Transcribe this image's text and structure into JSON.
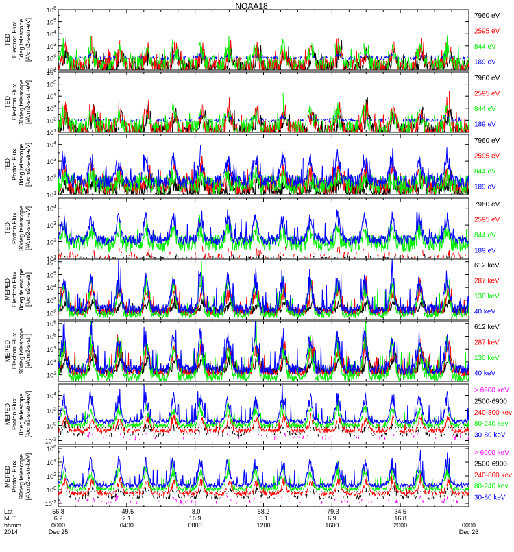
{
  "figure": {
    "title": "NOAA18",
    "date_start": "Dec 25",
    "date_end": "Dec 26",
    "year": "2014"
  },
  "colors": {
    "black": "#000000",
    "red": "#ff0000",
    "green": "#00ee00",
    "blue": "#0000ff",
    "magenta": "#ff00ff"
  },
  "ephemeris": {
    "row_labels": [
      "Lat",
      "MLT",
      "hhmm",
      "2014"
    ],
    "columns": [
      {
        "lat": "56.8",
        "mlt": "6.2",
        "hhmm": "0000",
        "date": "Dec 25"
      },
      {
        "lat": "-49.5",
        "mlt": "2.1",
        "hhmm": "0400",
        "date": ""
      },
      {
        "lat": "-8.0",
        "mlt": "16.9",
        "hhmm": "0800",
        "date": ""
      },
      {
        "lat": "58.2",
        "mlt": "5.1",
        "hhmm": "1200",
        "date": ""
      },
      {
        "lat": "-79.3",
        "mlt": "6.9",
        "hhmm": "1600",
        "date": ""
      },
      {
        "lat": "34.5",
        "mlt": "16.8",
        "hhmm": "2000",
        "date": ""
      },
      {
        "lat": "",
        "mlt": "",
        "hhmm": "0000",
        "date": "Dec 26"
      }
    ]
  },
  "chart_data": [
    {
      "type": "line",
      "ylabel": [
        "TED",
        "Electron Flux",
        "0deg telescope",
        "[#/cm2-s-str-eV]"
      ],
      "y_scale": "log",
      "y_ticks": [
        "10^1",
        "10^2",
        "10^3",
        "10^4",
        "10^5",
        "10^6"
      ],
      "ylim": [
        1,
        6
      ],
      "x_hours": [
        0,
        24
      ],
      "series": [
        {
          "name": "7960 eV",
          "color": "black",
          "base": 1.2,
          "peak": 2.6,
          "noise": 0.6,
          "period": 1.6,
          "offset": 0.2,
          "gaps": 0.1,
          "spiky": 1.0
        },
        {
          "name": "2595 eV",
          "color": "red",
          "base": 1.3,
          "peak": 3.0,
          "noise": 0.7,
          "period": 1.6,
          "offset": 0.25,
          "gaps": 0.1,
          "spiky": 1.0
        },
        {
          "name": "844 eV",
          "color": "green",
          "base": 1.5,
          "peak": 3.2,
          "noise": 0.7,
          "period": 1.6,
          "offset": 0.3,
          "gaps": 0.2,
          "spiky": 1.0
        },
        {
          "name": "189 eV",
          "color": "blue",
          "base": 2.0,
          "peak": 2.3,
          "noise": 0.15,
          "period": 1.6,
          "offset": 0.3,
          "gaps": 0.4,
          "spiky": 0.3
        }
      ]
    },
    {
      "type": "line",
      "ylabel": [
        "TED",
        "Electron Flux",
        "30deg telescope",
        "[#/cm2-s-str-eV]"
      ],
      "y_scale": "log",
      "y_ticks": [
        "10^1",
        "10^2",
        "10^3",
        "10^4",
        "10^5",
        "10^6"
      ],
      "ylim": [
        1,
        6
      ],
      "x_hours": [
        0,
        24
      ],
      "series": [
        {
          "name": "7960 eV",
          "color": "black",
          "base": 1.1,
          "peak": 2.8,
          "noise": 0.6,
          "period": 1.6,
          "offset": 0.2,
          "gaps": 0.1,
          "spiky": 1.0
        },
        {
          "name": "2595 eV",
          "color": "red",
          "base": 1.2,
          "peak": 3.3,
          "noise": 0.7,
          "period": 1.6,
          "offset": 0.25,
          "gaps": 0.1,
          "spiky": 1.0
        },
        {
          "name": "844 eV",
          "color": "green",
          "base": 1.4,
          "peak": 3.0,
          "noise": 0.7,
          "period": 1.6,
          "offset": 0.3,
          "gaps": 0.2,
          "spiky": 1.0
        },
        {
          "name": "189 eV",
          "color": "blue",
          "base": 2.0,
          "peak": 2.4,
          "noise": 0.15,
          "period": 1.6,
          "offset": 0.3,
          "gaps": 0.45,
          "spiky": 0.3
        }
      ]
    },
    {
      "type": "line",
      "ylabel": [
        "TED",
        "Proton Flux",
        "0deg telescope",
        "[#/cm2-s-str-eV]"
      ],
      "y_scale": "log",
      "y_ticks": [
        "10^1",
        "10^2",
        "10^3",
        "10^4"
      ],
      "ylim": [
        1,
        4.6
      ],
      "x_hours": [
        0,
        24
      ],
      "series": [
        {
          "name": "7960 eV",
          "color": "black",
          "base": 1.2,
          "peak": 2.0,
          "noise": 0.5,
          "period": 1.6,
          "offset": 0.2,
          "gaps": 0.05,
          "spiky": 0.8
        },
        {
          "name": "2595 eV",
          "color": "red",
          "base": 1.5,
          "peak": 2.8,
          "noise": 0.5,
          "period": 1.6,
          "offset": 0.25,
          "gaps": 0.05,
          "spiky": 0.8
        },
        {
          "name": "844 eV",
          "color": "green",
          "base": 1.6,
          "peak": 2.2,
          "noise": 0.6,
          "period": 1.6,
          "offset": 0.3,
          "gaps": 0.05,
          "spiky": 0.6
        },
        {
          "name": "189 eV",
          "color": "blue",
          "base": 1.8,
          "peak": 3.6,
          "noise": 0.4,
          "period": 1.6,
          "offset": 0.3,
          "gaps": 0.05,
          "spiky": 0.9
        }
      ]
    },
    {
      "type": "line",
      "ylabel": [
        "TED",
        "Proton Flux",
        "30deg telescope",
        "[#/cm2-s-str-eV]"
      ],
      "y_scale": "log",
      "y_ticks": [
        "10^1",
        "10^2",
        "10^3",
        "10^4"
      ],
      "ylim": [
        1,
        4.6
      ],
      "x_hours": [
        0,
        24
      ],
      "series": [
        {
          "name": "7960 eV",
          "color": "black",
          "base": 0.9,
          "peak": 1.2,
          "noise": 0.2,
          "period": 1.6,
          "offset": 0.2,
          "gaps": 0.6,
          "spiky": 0.3
        },
        {
          "name": "2595 eV",
          "color": "red",
          "base": 1.1,
          "peak": 1.5,
          "noise": 0.3,
          "period": 1.6,
          "offset": 0.25,
          "gaps": 0.6,
          "spiky": 0.3
        },
        {
          "name": "844 eV",
          "color": "green",
          "base": 1.9,
          "peak": 3.0,
          "noise": 0.5,
          "period": 1.6,
          "offset": 0.3,
          "gaps": 0.0,
          "spiky": 0.5
        },
        {
          "name": "189 eV",
          "color": "blue",
          "base": 2.1,
          "peak": 3.8,
          "noise": 0.3,
          "period": 1.6,
          "offset": 0.3,
          "gaps": 0.0,
          "spiky": 0.8
        }
      ]
    },
    {
      "type": "line",
      "ylabel": [
        "MEPED",
        "Electron Flux",
        "0deg telescope",
        "[#/cm2-s-str]"
      ],
      "y_scale": "log",
      "y_ticks": [
        "10^2",
        "10^3",
        "10^4",
        "10^5",
        "10^6"
      ],
      "ylim": [
        1.5,
        6.2
      ],
      "x_hours": [
        0,
        24
      ],
      "series": [
        {
          "name": "612 keV",
          "color": "black",
          "base": 2.2,
          "peak": 3.0,
          "noise": 0.3,
          "period": 1.6,
          "offset": 0.2,
          "gaps": 0.0,
          "spiky": 0.6
        },
        {
          "name": "287 keV",
          "color": "red",
          "base": 2.1,
          "peak": 4.4,
          "noise": 0.3,
          "period": 1.6,
          "offset": 0.25,
          "gaps": 0.0,
          "spiky": 0.8
        },
        {
          "name": "130 keV",
          "color": "green",
          "base": 1.9,
          "peak": 4.8,
          "noise": 0.3,
          "period": 1.6,
          "offset": 0.3,
          "gaps": 0.0,
          "spiky": 0.8
        },
        {
          "name": "40 keV",
          "color": "blue",
          "base": 2.3,
          "peak": 5.3,
          "noise": 0.4,
          "period": 1.6,
          "offset": 0.3,
          "gaps": 0.0,
          "spiky": 1.0
        }
      ]
    },
    {
      "type": "line",
      "ylabel": [
        "MEPED",
        "Electron Flux",
        "90deg telescope",
        "[#/cm2-s-str]"
      ],
      "y_scale": "log",
      "y_ticks": [
        "10^2",
        "10^3",
        "10^4",
        "10^5",
        "10^6"
      ],
      "ylim": [
        1.5,
        6.2
      ],
      "x_hours": [
        0,
        24
      ],
      "series": [
        {
          "name": "612 keV",
          "color": "black",
          "base": 2.3,
          "peak": 3.8,
          "noise": 0.3,
          "period": 1.6,
          "offset": 0.2,
          "gaps": 0.0,
          "spiky": 0.8
        },
        {
          "name": "287 keV",
          "color": "red",
          "base": 2.2,
          "peak": 4.8,
          "noise": 0.3,
          "period": 1.6,
          "offset": 0.25,
          "gaps": 0.0,
          "spiky": 0.9
        },
        {
          "name": "130 keV",
          "color": "green",
          "base": 1.8,
          "peak": 5.1,
          "noise": 0.3,
          "period": 1.6,
          "offset": 0.3,
          "gaps": 0.0,
          "spiky": 0.9
        },
        {
          "name": "40 keV",
          "color": "blue",
          "base": 2.4,
          "peak": 5.6,
          "noise": 0.4,
          "period": 1.6,
          "offset": 0.3,
          "gaps": 0.0,
          "spiky": 1.0
        }
      ]
    },
    {
      "type": "line",
      "ylabel": [
        "MEPED",
        "Proton Flux",
        "0deg telescope",
        "[#/cm2-s-str-keV]"
      ],
      "y_scale": "log",
      "y_ticks": [
        "10^-2",
        "10^0",
        "10^2",
        "10^4"
      ],
      "ylim": [
        -2.5,
        5.5
      ],
      "x_hours": [
        0,
        24
      ],
      "series": [
        {
          "name": "> 6900 keV",
          "color": "magenta",
          "base": -1.6,
          "peak": -0.8,
          "noise": 0.3,
          "period": 1.6,
          "offset": 0.3,
          "gaps": 0.7,
          "spiky": 0.4
        },
        {
          "name": "2500-6900",
          "color": "black",
          "base": -1.2,
          "peak": 0.3,
          "noise": 0.3,
          "period": 1.6,
          "offset": 0.25,
          "gaps": 0.5,
          "spiky": 0.5
        },
        {
          "name": "240-800 kev",
          "color": "red",
          "base": -0.7,
          "peak": 1.4,
          "noise": 0.3,
          "period": 1.6,
          "offset": 0.25,
          "gaps": 0.1,
          "spiky": 0.6
        },
        {
          "name": "80-240 kev",
          "color": "green",
          "base": 0.0,
          "peak": 2.8,
          "noise": 0.3,
          "period": 1.6,
          "offset": 0.3,
          "gaps": 0.05,
          "spiky": 0.9
        },
        {
          "name": "30-80 keV",
          "color": "blue",
          "base": 0.5,
          "peak": 4.4,
          "noise": 0.3,
          "period": 1.6,
          "offset": 0.3,
          "gaps": 0.0,
          "spiky": 1.0
        }
      ]
    },
    {
      "type": "line",
      "ylabel": [
        "MEPED",
        "Proton Flux",
        "90deg telescope",
        "[#/cm2-s-str-keV]"
      ],
      "y_scale": "log",
      "y_ticks": [
        "10^-2",
        "10^0",
        "10^2",
        "10^4",
        "10^6"
      ],
      "ylim": [
        -2.5,
        6.3
      ],
      "x_hours": [
        0,
        24
      ],
      "series": [
        {
          "name": "> 6900 keV",
          "color": "magenta",
          "base": -1.8,
          "peak": -0.9,
          "noise": 0.3,
          "period": 1.6,
          "offset": 0.3,
          "gaps": 0.7,
          "spiky": 0.4
        },
        {
          "name": "2500-6900",
          "color": "black",
          "base": -1.1,
          "peak": 0.5,
          "noise": 0.3,
          "period": 1.6,
          "offset": 0.25,
          "gaps": 0.5,
          "spiky": 0.5
        },
        {
          "name": "240-800 kev",
          "color": "red",
          "base": -0.6,
          "peak": 1.8,
          "noise": 0.3,
          "period": 1.6,
          "offset": 0.25,
          "gaps": 0.1,
          "spiky": 0.6
        },
        {
          "name": "80-240 kev",
          "color": "green",
          "base": 0.1,
          "peak": 3.4,
          "noise": 0.3,
          "period": 1.6,
          "offset": 0.3,
          "gaps": 0.05,
          "spiky": 0.9
        },
        {
          "name": "30-80 keV",
          "color": "blue",
          "base": 0.6,
          "peak": 4.8,
          "noise": 0.3,
          "period": 1.6,
          "offset": 0.3,
          "gaps": 0.0,
          "spiky": 1.0
        }
      ]
    }
  ]
}
